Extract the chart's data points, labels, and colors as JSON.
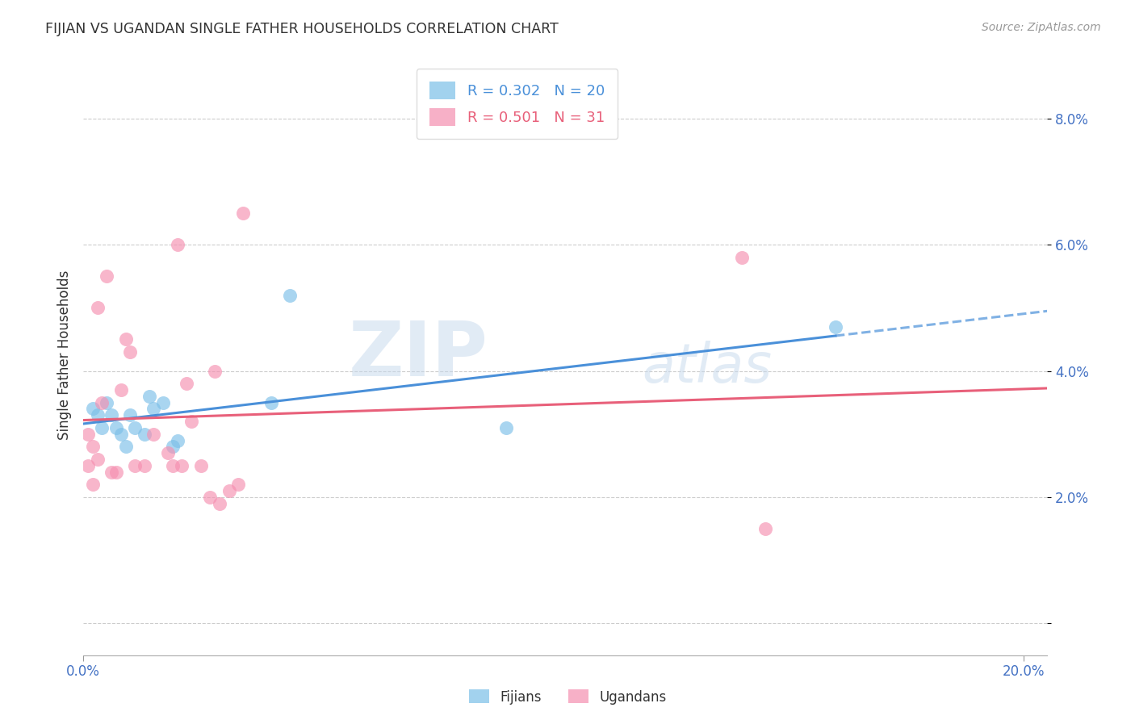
{
  "title": "FIJIAN VS UGANDAN SINGLE FATHER HOUSEHOLDS CORRELATION CHART",
  "source": "Source: ZipAtlas.com",
  "xlabel": "",
  "ylabel": "Single Father Households",
  "xlim": [
    0.0,
    0.205
  ],
  "ylim": [
    -0.005,
    0.09
  ],
  "yticks": [
    0.0,
    0.02,
    0.04,
    0.06,
    0.08
  ],
  "xticks": [
    0.0,
    0.2
  ],
  "ytick_labels": [
    "",
    "2.0%",
    "4.0%",
    "6.0%",
    "8.0%"
  ],
  "xtick_labels": [
    "0.0%",
    "20.0%"
  ],
  "fijian_color": "#7bbfe8",
  "ugandan_color": "#f58fb0",
  "fijian_line_color": "#4a90d9",
  "ugandan_line_color": "#e8607a",
  "R_fijian": 0.302,
  "N_fijian": 20,
  "R_ugandan": 0.501,
  "N_ugandan": 31,
  "watermark_zip": "ZIP",
  "watermark_atlas": "atlas",
  "fijians_x": [
    0.002,
    0.003,
    0.004,
    0.005,
    0.006,
    0.007,
    0.008,
    0.009,
    0.01,
    0.011,
    0.013,
    0.014,
    0.015,
    0.017,
    0.019,
    0.02,
    0.04,
    0.044,
    0.09,
    0.16
  ],
  "fijians_y": [
    0.034,
    0.033,
    0.031,
    0.035,
    0.033,
    0.031,
    0.03,
    0.028,
    0.033,
    0.031,
    0.03,
    0.036,
    0.034,
    0.035,
    0.028,
    0.029,
    0.035,
    0.052,
    0.031,
    0.047
  ],
  "ugandans_x": [
    0.001,
    0.001,
    0.002,
    0.002,
    0.003,
    0.003,
    0.004,
    0.005,
    0.006,
    0.007,
    0.008,
    0.009,
    0.01,
    0.011,
    0.013,
    0.015,
    0.018,
    0.019,
    0.02,
    0.021,
    0.022,
    0.023,
    0.025,
    0.027,
    0.028,
    0.029,
    0.031,
    0.033,
    0.034,
    0.14,
    0.145
  ],
  "ugandans_y": [
    0.03,
    0.025,
    0.028,
    0.022,
    0.026,
    0.05,
    0.035,
    0.055,
    0.024,
    0.024,
    0.037,
    0.045,
    0.043,
    0.025,
    0.025,
    0.03,
    0.027,
    0.025,
    0.06,
    0.025,
    0.038,
    0.032,
    0.025,
    0.02,
    0.04,
    0.019,
    0.021,
    0.022,
    0.065,
    0.058,
    0.015
  ]
}
